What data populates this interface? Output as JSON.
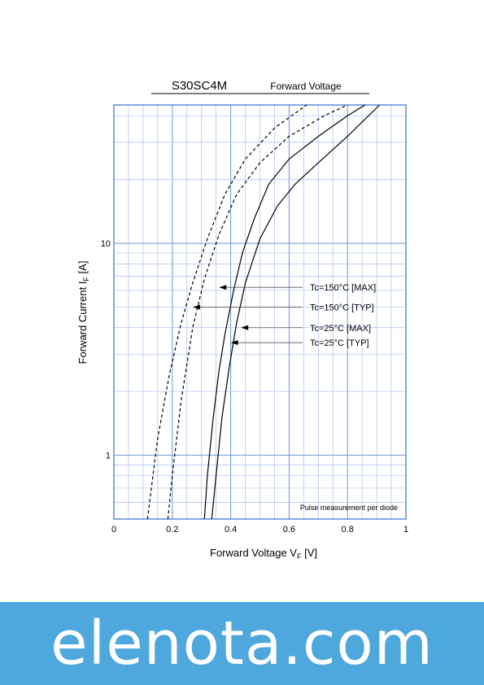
{
  "chart_data": {
    "type": "line",
    "title": "S30SC4M",
    "subtitle": "Forward  Voltage",
    "xlabel": "Forward Voltage  V",
    "xlabel_sub": "F",
    "xlabel_unit": "  [V]",
    "ylabel": "Forward Current  I",
    "ylabel_sub": "F",
    "ylabel_unit": "  [A]",
    "xlim": [
      0,
      1
    ],
    "ylim": [
      0.5,
      45
    ],
    "yscale": "log",
    "grid": true,
    "x_ticks": [
      {
        "value": 0,
        "label": "0"
      },
      {
        "value": 0.2,
        "label": "0.2"
      },
      {
        "value": 0.4,
        "label": "0.4"
      },
      {
        "value": 0.6,
        "label": "0.6"
      },
      {
        "value": 0.8,
        "label": "0.8"
      },
      {
        "value": 1,
        "label": "1"
      }
    ],
    "y_ticks": [
      {
        "value": 1,
        "label": "1"
      },
      {
        "value": 10,
        "label": "10"
      }
    ],
    "note": "Pulse measurement per diode",
    "series": [
      {
        "name": "Tc=150°C [MAX]",
        "style": "dashed",
        "label_y": 6.2,
        "arrow_x": 0.36,
        "points": [
          [
            0.115,
            0.5
          ],
          [
            0.15,
            1.2
          ],
          [
            0.19,
            2.4
          ],
          [
            0.23,
            4.2
          ],
          [
            0.27,
            6.5
          ],
          [
            0.32,
            10.5
          ],
          [
            0.38,
            17
          ],
          [
            0.45,
            25
          ],
          [
            0.55,
            35
          ],
          [
            0.66,
            45
          ]
        ]
      },
      {
        "name": "Tc=150°C [TYP]",
        "style": "dashed",
        "label_y": 5.0,
        "arrow_x": 0.27,
        "points": [
          [
            0.185,
            0.5
          ],
          [
            0.2,
            0.8
          ],
          [
            0.23,
            1.8
          ],
          [
            0.27,
            4.0
          ],
          [
            0.31,
            6.8
          ],
          [
            0.36,
            11
          ],
          [
            0.42,
            17
          ],
          [
            0.5,
            24
          ],
          [
            0.6,
            32
          ],
          [
            0.72,
            40
          ],
          [
            0.8,
            45
          ]
        ]
      },
      {
        "name": "Tc=25°C [MAX]",
        "style": "solid",
        "label_y": 4.0,
        "arrow_x": 0.435,
        "points": [
          [
            0.31,
            0.5
          ],
          [
            0.32,
            0.8
          ],
          [
            0.34,
            1.5
          ],
          [
            0.36,
            2.5
          ],
          [
            0.38,
            3.7
          ],
          [
            0.41,
            6.0
          ],
          [
            0.44,
            9.0
          ],
          [
            0.48,
            13
          ],
          [
            0.53,
            19
          ],
          [
            0.6,
            25
          ],
          [
            0.7,
            32
          ],
          [
            0.8,
            40
          ],
          [
            0.86,
            45
          ]
        ]
      },
      {
        "name": "Tc=25°C [TYP]",
        "style": "solid",
        "label_y": 3.4,
        "arrow_x": 0.4,
        "points": [
          [
            0.335,
            0.5
          ],
          [
            0.35,
            0.8
          ],
          [
            0.37,
            1.5
          ],
          [
            0.395,
            2.6
          ],
          [
            0.42,
            4.2
          ],
          [
            0.45,
            6.5
          ],
          [
            0.5,
            10.5
          ],
          [
            0.56,
            15
          ],
          [
            0.62,
            19
          ],
          [
            0.7,
            24
          ],
          [
            0.8,
            32
          ],
          [
            0.91,
            45
          ]
        ]
      }
    ]
  },
  "banner": {
    "text": "elenota.com",
    "color": "#4ea8de"
  }
}
